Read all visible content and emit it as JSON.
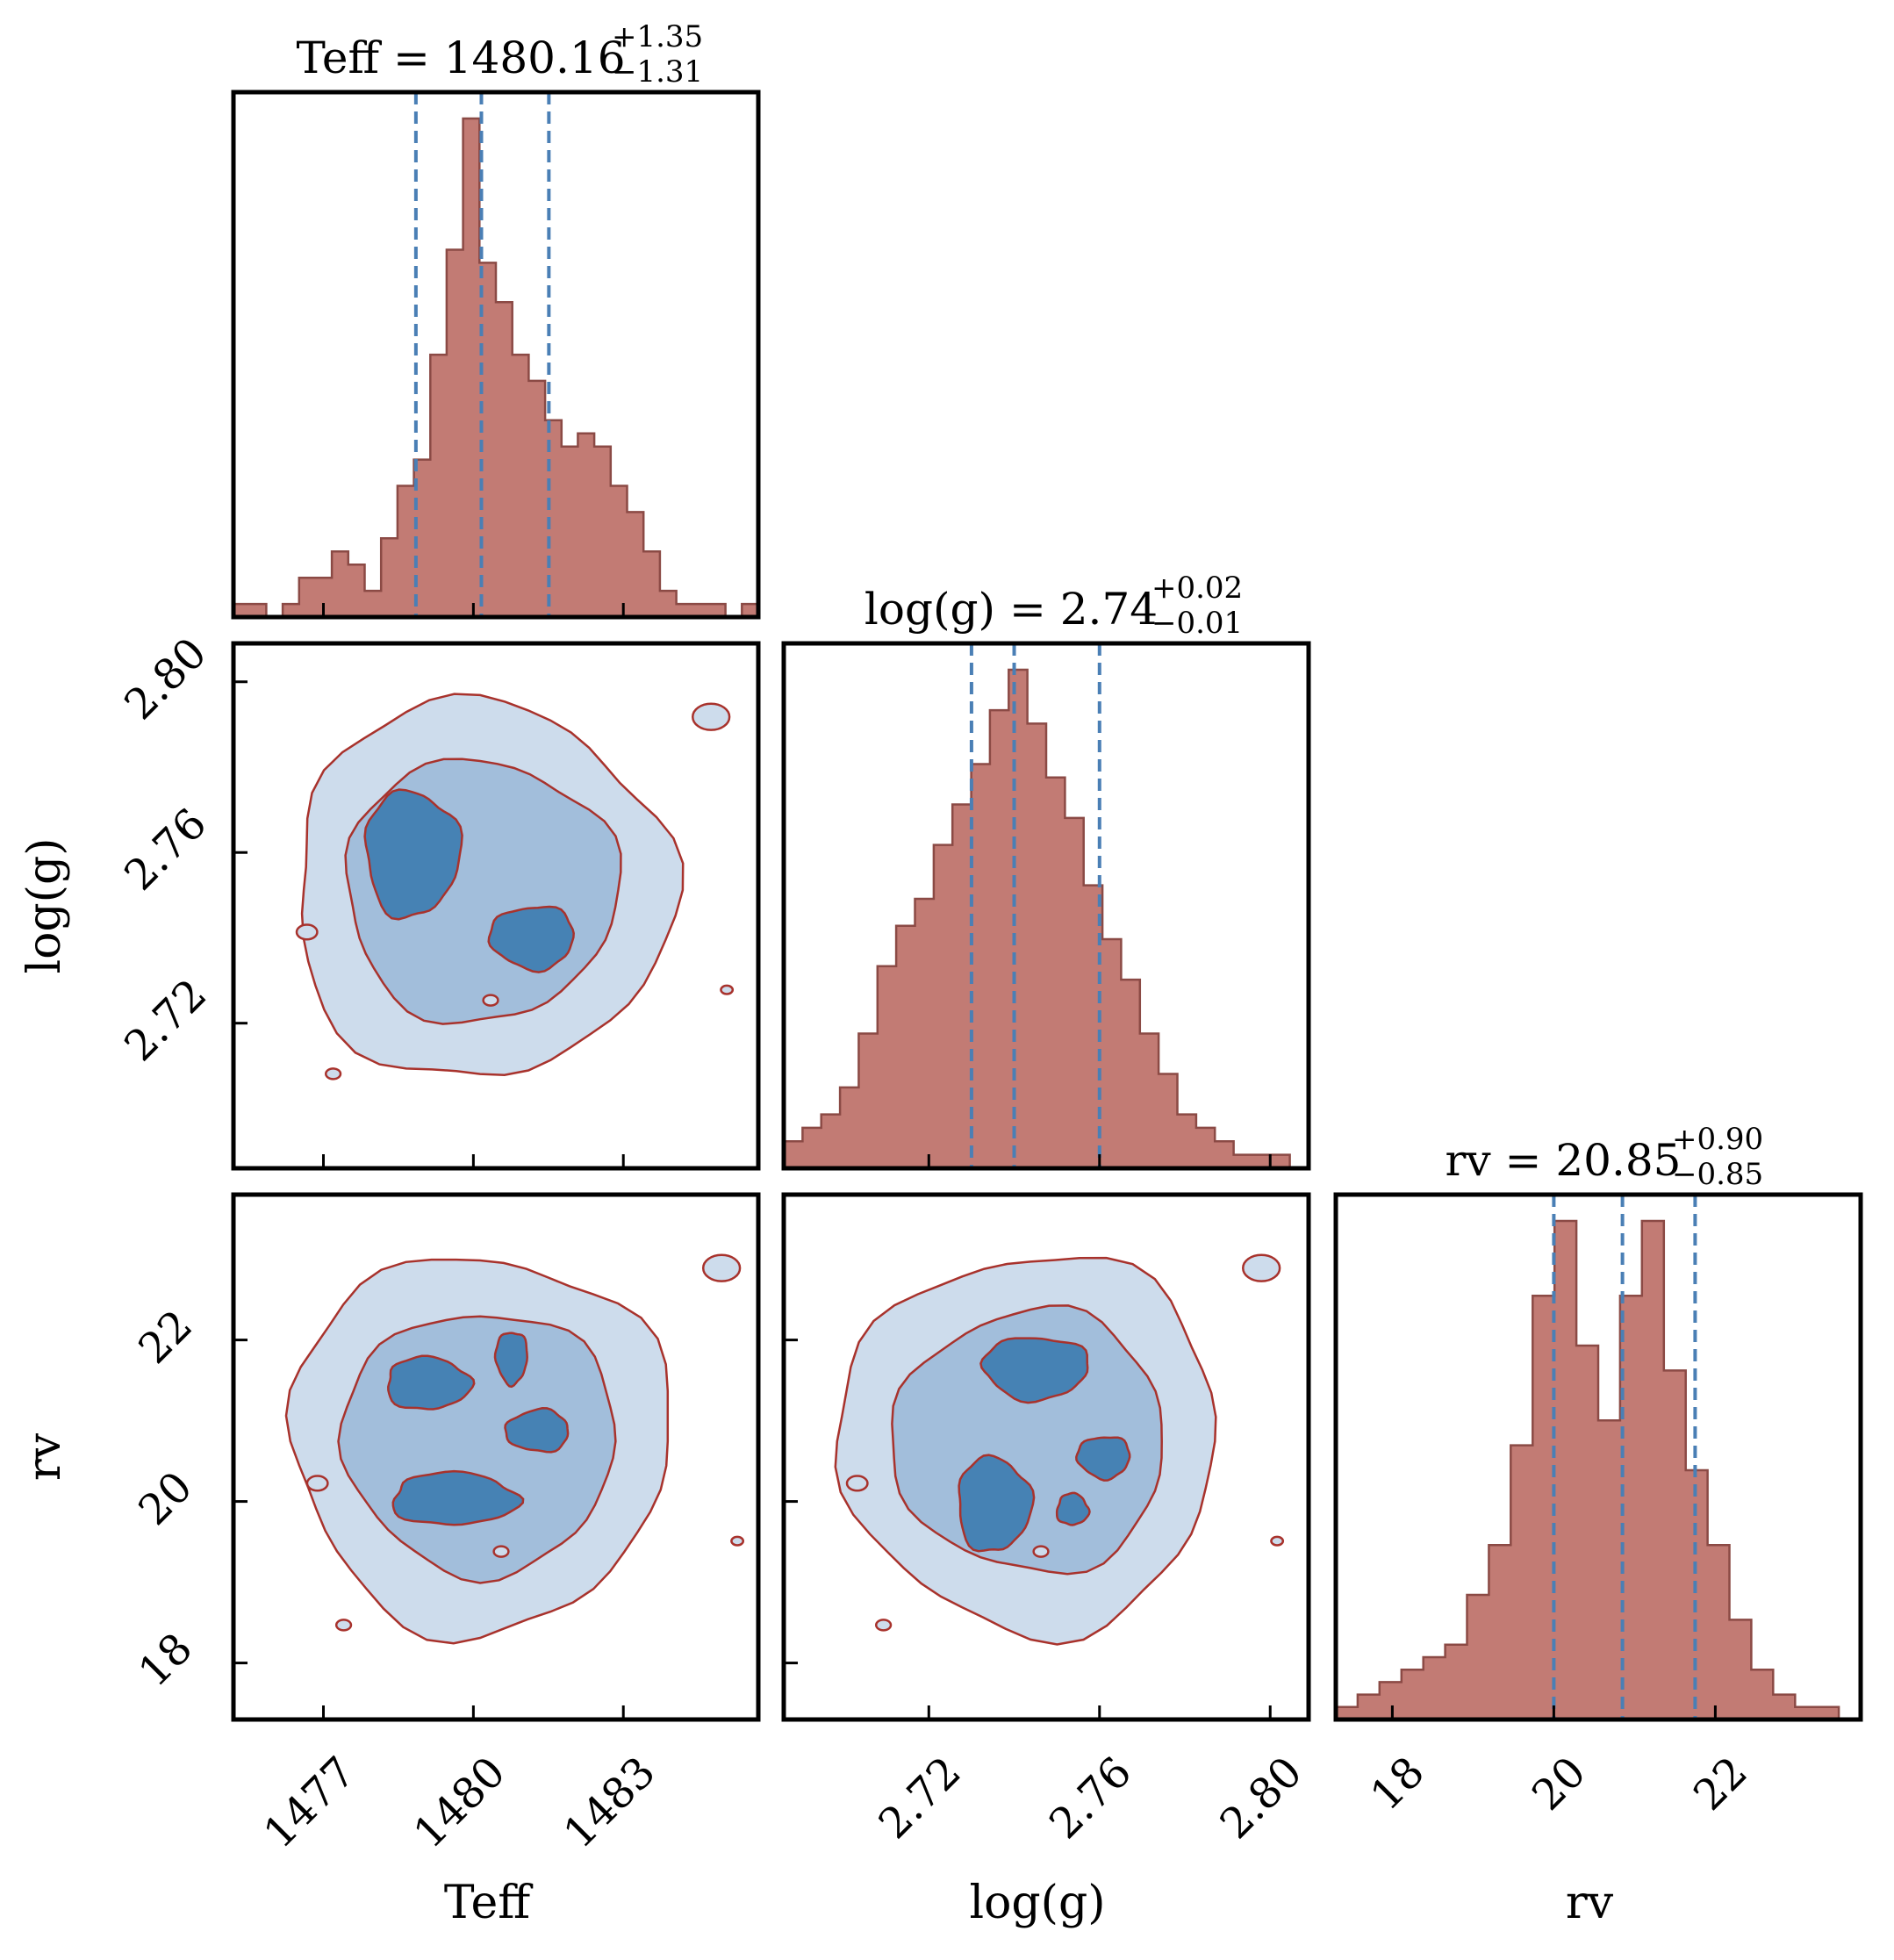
{
  "chart_data": {
    "type": "corner",
    "parameters": [
      "Teff",
      "log(g)",
      "rv"
    ],
    "titles": [
      {
        "param": "Teff",
        "name": "Teff",
        "median": "1480.16",
        "plus": "+1.35",
        "minus": "−1.31"
      },
      {
        "param": "log(g)",
        "name": "log(g)",
        "median": "2.74",
        "plus": "+0.02",
        "minus": "−0.01"
      },
      {
        "param": "rv",
        "name": "rv",
        "median": "20.85",
        "plus": "+0.90",
        "minus": "−0.85"
      }
    ],
    "ranges": {
      "Teff": [
        1475.2,
        1485.7
      ],
      "log(g)": [
        2.686,
        2.809
      ],
      "rv": [
        17.3,
        23.8
      ]
    },
    "ticks": {
      "Teff": [
        "1477",
        "1480",
        "1483"
      ],
      "log(g)": [
        "2.72",
        "2.76",
        "2.80"
      ],
      "rv": [
        "18",
        "20",
        "22"
      ]
    },
    "quantiles": {
      "Teff": [
        1478.85,
        1480.16,
        1481.51
      ],
      "log(g)": [
        2.73,
        2.74,
        2.76
      ],
      "rv": [
        20.0,
        20.85,
        21.75
      ]
    },
    "histograms": {
      "Teff": [
        1,
        1,
        0,
        1,
        3,
        3,
        5,
        4,
        2,
        6,
        10,
        12,
        20,
        28,
        38,
        27,
        24,
        20,
        18,
        15,
        13,
        14,
        13,
        10,
        8,
        5,
        2,
        1,
        1,
        1,
        0,
        1
      ],
      "log(g)": [
        2,
        3,
        4,
        6,
        10,
        15,
        18,
        20,
        24,
        27,
        30,
        34,
        37,
        33,
        29,
        26,
        21,
        17,
        14,
        10,
        7,
        4,
        3,
        2,
        1,
        1,
        1,
        0
      ],
      "rv": [
        1,
        2,
        3,
        4,
        5,
        6,
        10,
        14,
        22,
        34,
        40,
        30,
        24,
        34,
        40,
        28,
        20,
        14,
        8,
        4,
        2,
        1,
        1,
        0
      ]
    },
    "colors": {
      "histogram_fill": "#c27b74",
      "histogram_edge": "#8b4a45",
      "quantile_line": "#4a7fb5",
      "contour_levels": [
        "#cddcec",
        "#a2bedb",
        "#4682b4"
      ],
      "contour_edge": "#a8322c"
    },
    "xlabels": [
      "Teff",
      "log(g)",
      "rv"
    ],
    "ylabels": [
      "log(g)",
      "rv"
    ]
  }
}
